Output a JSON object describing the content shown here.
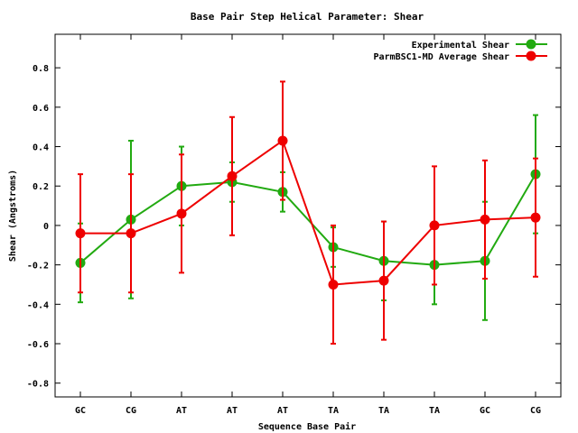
{
  "chart_data": {
    "type": "line",
    "title": "Base Pair Step Helical Parameter: Shear",
    "xlabel": "Sequence Base Pair",
    "ylabel": "Shear (Angstroms)",
    "categories": [
      "GC",
      "CG",
      "AT",
      "AT",
      "AT",
      "TA",
      "TA",
      "TA",
      "GC",
      "CG"
    ],
    "ylim": [
      -0.87,
      0.97
    ],
    "yticks": [
      -0.8,
      -0.6,
      -0.4,
      -0.2,
      0,
      0.2,
      0.4,
      0.6,
      0.8
    ],
    "ytick_labels": [
      "-0.8",
      "-0.6",
      "-0.4",
      "-0.2",
      "0",
      "0.2",
      "0.4",
      "0.6",
      "0.8"
    ],
    "legend_position": "top-right",
    "grid": false,
    "series": [
      {
        "name": "Experimental Shear",
        "color": "#22aa11",
        "values": [
          -0.19,
          0.03,
          0.2,
          0.22,
          0.17,
          -0.11,
          -0.18,
          -0.2,
          -0.18,
          0.26
        ],
        "err_low": [
          -0.39,
          -0.37,
          0.0,
          0.12,
          0.07,
          -0.21,
          -0.38,
          -0.4,
          -0.48,
          -0.04
        ],
        "err_high": [
          0.01,
          0.43,
          0.4,
          0.32,
          0.27,
          -0.01,
          0.02,
          0.0,
          0.12,
          0.56
        ]
      },
      {
        "name": "ParmBSC1-MD Average Shear",
        "color": "#ee0000",
        "values": [
          -0.04,
          -0.04,
          0.06,
          0.25,
          0.43,
          -0.3,
          -0.28,
          0.0,
          0.03,
          0.04
        ],
        "err_low": [
          -0.34,
          -0.34,
          -0.24,
          -0.05,
          0.13,
          -0.6,
          -0.58,
          -0.3,
          -0.27,
          -0.26
        ],
        "err_high": [
          0.26,
          0.26,
          0.36,
          0.55,
          0.73,
          0.0,
          0.02,
          0.3,
          0.33,
          0.34
        ]
      }
    ]
  }
}
